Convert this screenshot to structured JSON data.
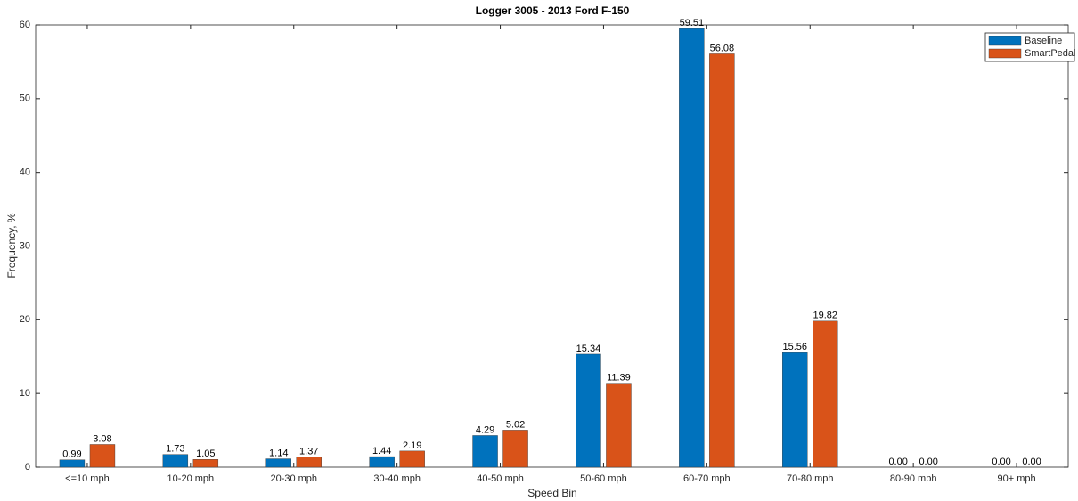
{
  "chart_data": {
    "type": "bar",
    "title": "Logger 3005 - 2013 Ford F-150",
    "x_label": "Speed Bin",
    "y_label": "Frequency, %",
    "categories": [
      "<=10 mph",
      "10-20 mph",
      "20-30 mph",
      "30-40 mph",
      "40-50 mph",
      "50-60 mph",
      "60-70 mph",
      "70-80 mph",
      "80-90 mph",
      "90+ mph"
    ],
    "series": [
      {
        "name": "Baseline",
        "color": "#0072BD",
        "values": [
          0.99,
          1.73,
          1.14,
          1.44,
          4.29,
          15.34,
          59.51,
          15.56,
          0,
          0
        ],
        "value_labels": [
          "0.99",
          "1.73",
          "1.14",
          "1.44",
          "4.29",
          "15.34",
          "59.51",
          "15.56",
          "0.00",
          "0.00"
        ]
      },
      {
        "name": "SmartPedal",
        "color": "#D95319",
        "values": [
          3.08,
          1.05,
          1.37,
          2.19,
          5.02,
          11.39,
          56.08,
          19.82,
          0,
          0
        ],
        "value_labels": [
          "3.08",
          "1.05",
          "1.37",
          "2.19",
          "5.02",
          "11.39",
          "56.08",
          "19.82",
          "0.00",
          "0.00"
        ]
      }
    ],
    "ylim": [
      0,
      60
    ],
    "yticks": [
      0,
      10,
      20,
      30,
      40,
      50,
      60
    ],
    "grid": false,
    "legend": "top-right"
  }
}
